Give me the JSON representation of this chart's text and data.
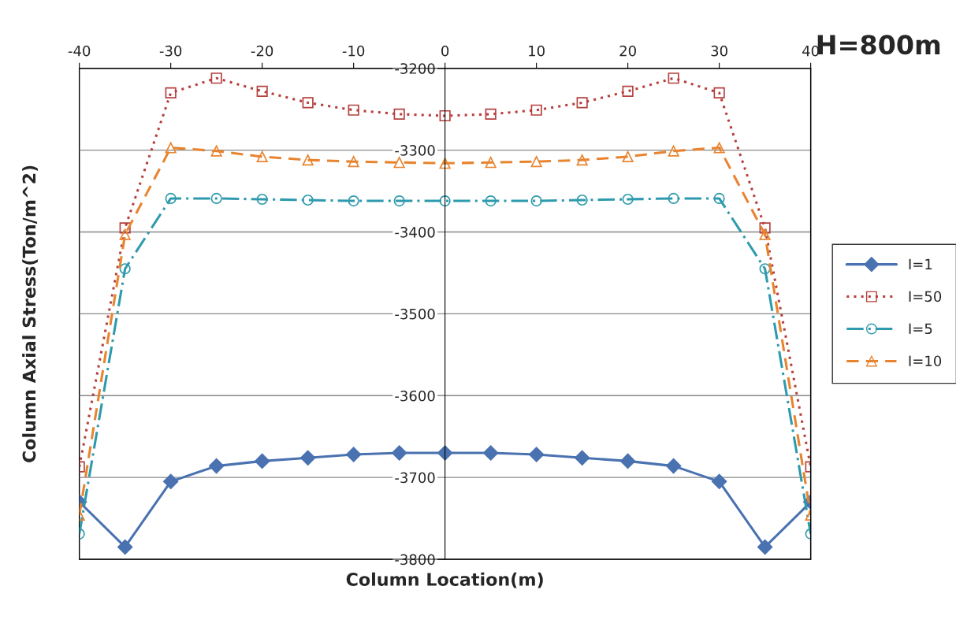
{
  "chart_data": {
    "type": "line",
    "title": "H=800m",
    "xlabel": "Column Location(m)",
    "ylabel": "Column Axial Stress(Ton/m^2)",
    "x": [
      -40,
      -35,
      -30,
      -25,
      -20,
      -15,
      -10,
      -5,
      0,
      5,
      10,
      15,
      20,
      25,
      30,
      35,
      40
    ],
    "series": [
      {
        "name": "I=1",
        "color": "#4a72b0",
        "marker": "diamond",
        "line_style": "solid",
        "values": [
          -3730,
          -3785,
          -3705,
          -3686,
          -3680,
          -3676,
          -3672,
          -3670,
          -3670,
          -3670,
          -3672,
          -3676,
          -3680,
          -3686,
          -3705,
          -3785,
          -3730
        ]
      },
      {
        "name": "I=50",
        "color": "#b5403d",
        "marker": "square",
        "line_style": "dotted",
        "values": [
          -3687,
          -3395,
          -3230,
          -3212,
          -3228,
          -3242,
          -3251,
          -3256,
          -3258,
          -3256,
          -3251,
          -3242,
          -3228,
          -3212,
          -3230,
          -3395,
          -3687
        ]
      },
      {
        "name": "I=5",
        "color": "#2e9aae",
        "marker": "circle",
        "line_style": "dashdot",
        "values": [
          -3769,
          -3445,
          -3359,
          -3359,
          -3360,
          -3361,
          -3362,
          -3362,
          -3362,
          -3362,
          -3362,
          -3361,
          -3360,
          -3359,
          -3359,
          -3445,
          -3769
        ]
      },
      {
        "name": "I=10",
        "color": "#e8842f",
        "marker": "triangle",
        "line_style": "dashed",
        "values": [
          -3746,
          -3403,
          -3297,
          -3301,
          -3308,
          -3312,
          -3314,
          -3315,
          -3316,
          -3315,
          -3314,
          -3312,
          -3308,
          -3301,
          -3297,
          -3403,
          -3746
        ]
      }
    ],
    "xlim": [
      -40,
      40
    ],
    "xticks": [
      -40,
      -30,
      -20,
      -10,
      0,
      10,
      20,
      30,
      40
    ],
    "ylim": [
      -3800,
      -3200
    ],
    "yticks": [
      -3800,
      -3700,
      -3600,
      -3500,
      -3400,
      -3300,
      -3200
    ],
    "grid": "y",
    "legend": "right"
  }
}
